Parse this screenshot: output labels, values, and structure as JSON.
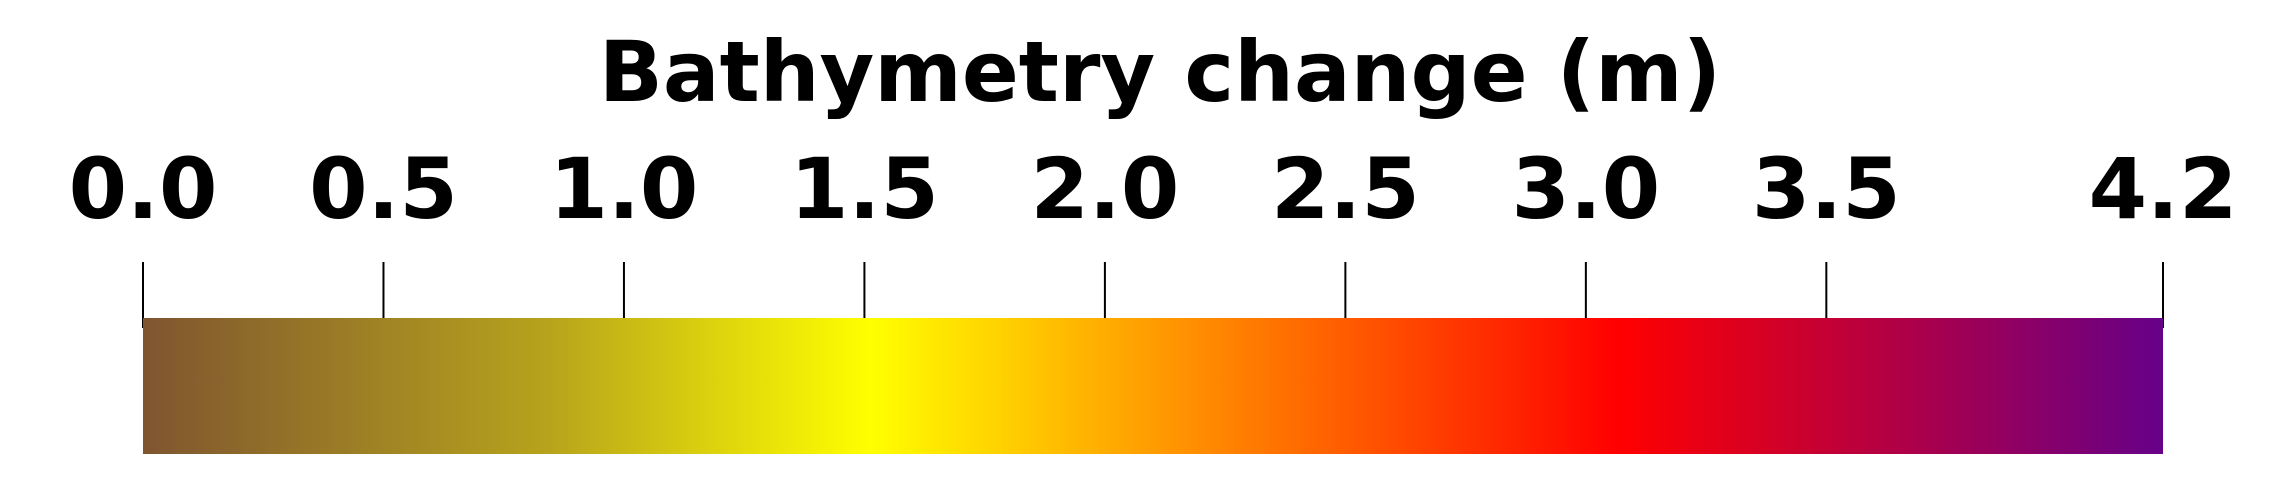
{
  "chart_data": {
    "type": "colorbar",
    "title": "Bathymetry change (m)",
    "orientation": "horizontal",
    "range": [
      0.0,
      4.2
    ],
    "ticks": [
      {
        "value": 0.0,
        "label": "0.0"
      },
      {
        "value": 0.5,
        "label": "0.5"
      },
      {
        "value": 1.0,
        "label": "1.0"
      },
      {
        "value": 1.5,
        "label": "1.5"
      },
      {
        "value": 2.0,
        "label": "2.0"
      },
      {
        "value": 2.5,
        "label": "2.5"
      },
      {
        "value": 3.0,
        "label": "3.0"
      },
      {
        "value": 3.5,
        "label": "3.5"
      },
      {
        "value": 4.2,
        "label": "4.2"
      }
    ],
    "colormap": [
      {
        "fraction": 0.0,
        "color": "#7f5530"
      },
      {
        "fraction": 0.2,
        "color": "#b7a31c"
      },
      {
        "fraction": 0.36,
        "color": "#ffff00"
      },
      {
        "fraction": 0.48,
        "color": "#ffaa00"
      },
      {
        "fraction": 0.73,
        "color": "#ff0000"
      },
      {
        "fraction": 1.0,
        "color": "#660088"
      }
    ]
  }
}
